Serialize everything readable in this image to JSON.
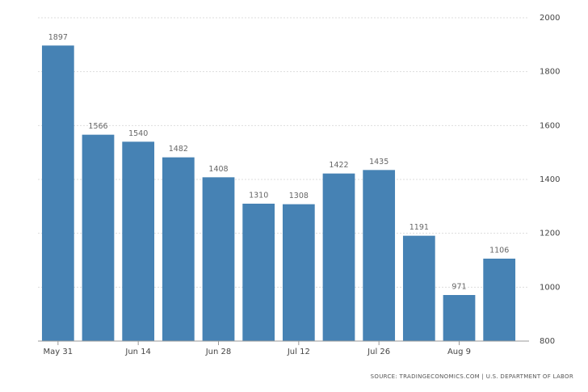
{
  "chart_data": {
    "type": "bar",
    "categories": [
      "May 31",
      null,
      "Jun 14",
      null,
      "Jun 28",
      null,
      "Jul 12",
      null,
      "Jul 26",
      null,
      "Aug 9",
      null
    ],
    "values": [
      1897,
      1566,
      1540,
      1482,
      1408,
      1310,
      1308,
      1422,
      1435,
      1191,
      971,
      1106
    ],
    "color": "#4682b4",
    "ylim": [
      800,
      2000
    ],
    "yticks": [
      800,
      1000,
      1200,
      1400,
      1600,
      1800,
      2000
    ],
    "grid": true,
    "source": "SOURCE: TRADINGECONOMICS.COM | U.S. DEPARTMENT OF LABOR"
  }
}
